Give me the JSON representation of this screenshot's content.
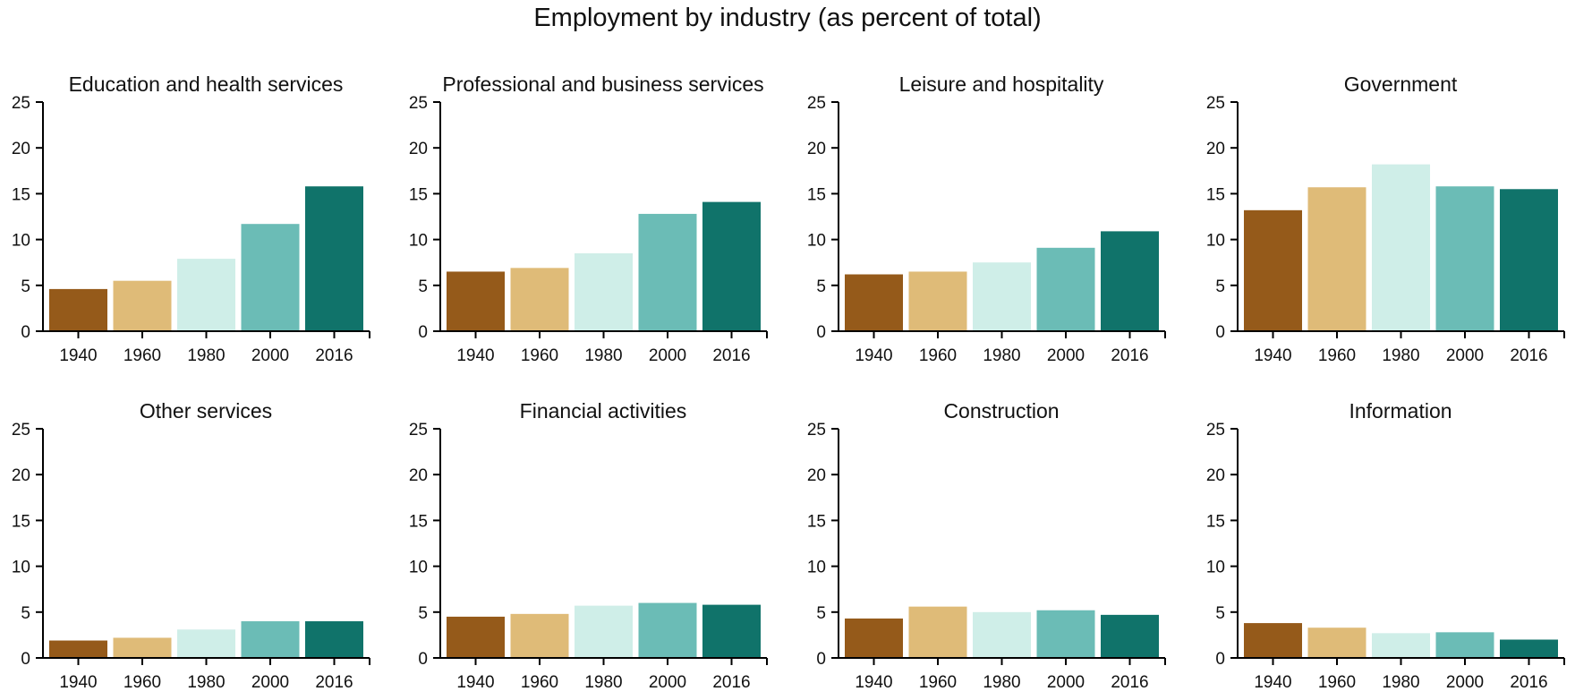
{
  "title": "Employment by industry (as percent of total)",
  "colors": [
    "#955a1a",
    "#dfbb78",
    "#cfeee8",
    "#6bbcb6",
    "#10736a"
  ],
  "chart_data": [
    {
      "type": "bar",
      "title": "Education and health services",
      "categories": [
        "1940",
        "1960",
        "1980",
        "2000",
        "2016"
      ],
      "values": [
        4.6,
        5.5,
        7.9,
        11.7,
        15.8
      ],
      "ylim": [
        0,
        25
      ],
      "yticks": [
        0,
        5,
        10,
        15,
        20,
        25
      ]
    },
    {
      "type": "bar",
      "title": "Professional and business services",
      "categories": [
        "1940",
        "1960",
        "1980",
        "2000",
        "2016"
      ],
      "values": [
        6.5,
        6.9,
        8.5,
        12.8,
        14.1
      ],
      "ylim": [
        0,
        25
      ],
      "yticks": [
        0,
        5,
        10,
        15,
        20,
        25
      ]
    },
    {
      "type": "bar",
      "title": "Leisure and hospitality",
      "categories": [
        "1940",
        "1960",
        "1980",
        "2000",
        "2016"
      ],
      "values": [
        6.2,
        6.5,
        7.5,
        9.1,
        10.9
      ],
      "ylim": [
        0,
        25
      ],
      "yticks": [
        0,
        5,
        10,
        15,
        20,
        25
      ]
    },
    {
      "type": "bar",
      "title": "Government",
      "categories": [
        "1940",
        "1960",
        "1980",
        "2000",
        "2016"
      ],
      "values": [
        13.2,
        15.7,
        18.2,
        15.8,
        15.5
      ],
      "ylim": [
        0,
        25
      ],
      "yticks": [
        0,
        5,
        10,
        15,
        20,
        25
      ]
    },
    {
      "type": "bar",
      "title": "Other services",
      "categories": [
        "1940",
        "1960",
        "1980",
        "2000",
        "2016"
      ],
      "values": [
        1.9,
        2.2,
        3.1,
        4.0,
        4.0
      ],
      "ylim": [
        0,
        25
      ],
      "yticks": [
        0,
        5,
        10,
        15,
        20,
        25
      ]
    },
    {
      "type": "bar",
      "title": "Financial activities",
      "categories": [
        "1940",
        "1960",
        "1980",
        "2000",
        "2016"
      ],
      "values": [
        4.5,
        4.8,
        5.7,
        6.0,
        5.8
      ],
      "ylim": [
        0,
        25
      ],
      "yticks": [
        0,
        5,
        10,
        15,
        20,
        25
      ]
    },
    {
      "type": "bar",
      "title": "Construction",
      "categories": [
        "1940",
        "1960",
        "1980",
        "2000",
        "2016"
      ],
      "values": [
        4.3,
        5.6,
        5.0,
        5.2,
        4.7
      ],
      "ylim": [
        0,
        25
      ],
      "yticks": [
        0,
        5,
        10,
        15,
        20,
        25
      ]
    },
    {
      "type": "bar",
      "title": "Information",
      "categories": [
        "1940",
        "1960",
        "1980",
        "2000",
        "2016"
      ],
      "values": [
        3.8,
        3.3,
        2.7,
        2.8,
        2.0
      ],
      "ylim": [
        0,
        25
      ],
      "yticks": [
        0,
        5,
        10,
        15,
        20,
        25
      ]
    }
  ]
}
